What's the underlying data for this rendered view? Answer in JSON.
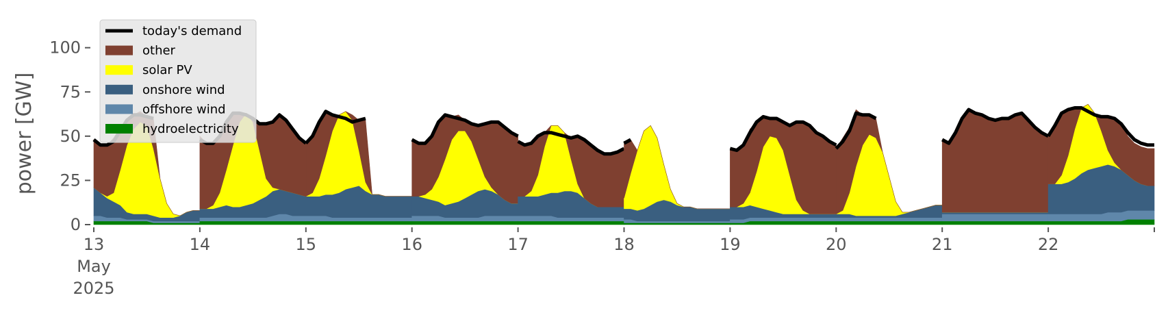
{
  "chart_data": {
    "type": "area",
    "title": "",
    "xlabel": "",
    "ylabel": "power [GW]",
    "xlim": [
      "2025-05-13 00:00",
      "2025-05-23 00:00"
    ],
    "ylim": [
      0,
      120
    ],
    "yticks": [
      0,
      25,
      50,
      75,
      100
    ],
    "xtick_labels": [
      "13\nMay\n2025",
      "14",
      "15",
      "16",
      "17",
      "18",
      "19",
      "20",
      "21",
      "22"
    ],
    "grid": false,
    "legend_position": "upper-left",
    "colors": {
      "hydroelectricity": "#008000",
      "offshore wind": "#5f87aa",
      "onshore wind": "#3a5f80",
      "solar PV": "#ffff00",
      "other": "#7f4030",
      "today's demand": "#000000"
    },
    "legend": [
      "today's demand",
      "other",
      "solar PV",
      "onshore wind",
      "offshore wind",
      "hydroelectricity"
    ],
    "stack_order": [
      "hydroelectricity",
      "offshore wind",
      "onshore wind",
      "solar PV",
      "other"
    ],
    "days": [
      {
        "date": "2025-05-13",
        "demand": [
          48,
          45,
          45,
          47,
          53,
          59,
          62,
          62,
          61,
          60,
          null,
          null,
          null,
          null,
          null,
          null,
          null
        ],
        "hydro": [
          2,
          2,
          2,
          2,
          2,
          2,
          2,
          2,
          2,
          1,
          1,
          1,
          1,
          1,
          1,
          1,
          1
        ],
        "offshore": [
          3,
          3,
          2,
          2,
          2,
          1,
          1,
          1,
          1,
          1,
          1,
          1,
          1,
          1,
          1,
          1,
          1
        ],
        "onshore": [
          16,
          13,
          11,
          9,
          7,
          4,
          3,
          3,
          3,
          3,
          2,
          2,
          2,
          3,
          5,
          6,
          6
        ],
        "solar": [
          0,
          0,
          1,
          5,
          20,
          38,
          48,
          52,
          50,
          38,
          22,
          8,
          2,
          0,
          0,
          0,
          0
        ],
        "other": [
          27,
          27,
          29,
          31,
          24,
          14,
          8,
          6,
          5,
          17,
          0,
          0,
          0,
          0,
          0,
          0,
          0
        ]
      },
      {
        "date": "2025-05-14",
        "demand": [
          48,
          46,
          46,
          50,
          58,
          63,
          63,
          62,
          60,
          57,
          57,
          58,
          62,
          59,
          54,
          49,
          46
        ],
        "hydro": [
          2,
          2,
          2,
          2,
          2,
          2,
          2,
          2,
          2,
          2,
          2,
          2,
          2,
          2,
          2,
          2,
          2
        ],
        "offshore": [
          2,
          2,
          2,
          2,
          2,
          2,
          2,
          2,
          2,
          2,
          2,
          3,
          4,
          4,
          3,
          3,
          3
        ],
        "onshore": [
          5,
          5,
          5,
          6,
          7,
          6,
          6,
          7,
          8,
          10,
          12,
          14,
          14,
          13,
          13,
          12,
          11
        ],
        "solar": [
          0,
          0,
          2,
          8,
          20,
          35,
          48,
          52,
          46,
          28,
          10,
          2,
          0,
          0,
          0,
          0,
          0
        ],
        "other": [
          41,
          37,
          35,
          32,
          27,
          18,
          5,
          0,
          2,
          15,
          31,
          37,
          42,
          40,
          36,
          32,
          30
        ]
      },
      {
        "date": "2025-05-15",
        "demand": [
          46,
          50,
          58,
          64,
          62,
          61,
          60,
          58,
          59,
          60,
          null,
          null,
          null,
          null,
          null,
          null,
          null
        ],
        "hydro": [
          2,
          2,
          2,
          2,
          2,
          2,
          2,
          2,
          2,
          2,
          2,
          2,
          2,
          2,
          2,
          2,
          2
        ],
        "offshore": [
          3,
          3,
          3,
          3,
          2,
          2,
          2,
          2,
          2,
          2,
          2,
          2,
          2,
          2,
          2,
          2,
          2
        ],
        "onshore": [
          11,
          11,
          11,
          12,
          13,
          14,
          16,
          17,
          18,
          15,
          13,
          13,
          12,
          12,
          12,
          12,
          12
        ],
        "solar": [
          0,
          2,
          10,
          22,
          36,
          44,
          44,
          38,
          20,
          5,
          0,
          0,
          0,
          0,
          0,
          0,
          0
        ],
        "other": [
          30,
          32,
          32,
          25,
          9,
          0,
          0,
          3,
          17,
          35,
          0,
          0,
          0,
          0,
          0,
          0,
          0
        ]
      },
      {
        "date": "2025-05-16",
        "demand": [
          48,
          46,
          46,
          50,
          58,
          62,
          61,
          60,
          59,
          57,
          56,
          57,
          58,
          58,
          55,
          52,
          50
        ],
        "hydro": [
          2,
          2,
          2,
          2,
          2,
          2,
          2,
          2,
          2,
          2,
          2,
          2,
          2,
          2,
          2,
          2,
          2
        ],
        "offshore": [
          3,
          3,
          3,
          3,
          3,
          2,
          2,
          2,
          2,
          2,
          2,
          3,
          3,
          3,
          3,
          3,
          3
        ],
        "onshore": [
          11,
          11,
          10,
          9,
          8,
          7,
          8,
          9,
          11,
          13,
          15,
          15,
          14,
          12,
          9,
          7,
          7
        ],
        "solar": [
          0,
          0,
          2,
          6,
          14,
          26,
          36,
          40,
          38,
          30,
          18,
          7,
          2,
          0,
          0,
          0,
          0
        ],
        "other": [
          32,
          30,
          29,
          30,
          31,
          25,
          13,
          9,
          6,
          10,
          19,
          30,
          37,
          41,
          41,
          40,
          38
        ]
      },
      {
        "date": "2025-05-17",
        "demand": [
          47,
          45,
          46,
          50,
          52,
          52,
          51,
          50,
          49,
          50,
          48,
          45,
          42,
          40,
          40,
          41,
          43
        ],
        "hydro": [
          2,
          2,
          2,
          2,
          2,
          2,
          2,
          2,
          2,
          2,
          2,
          2,
          2,
          2,
          2,
          2,
          2
        ],
        "offshore": [
          3,
          3,
          3,
          3,
          3,
          3,
          2,
          2,
          2,
          2,
          2,
          2,
          2,
          2,
          2,
          2,
          2
        ],
        "onshore": [
          11,
          11,
          11,
          11,
          12,
          13,
          14,
          15,
          15,
          14,
          11,
          8,
          6,
          6,
          6,
          6,
          6
        ],
        "solar": [
          0,
          0,
          3,
          12,
          27,
          38,
          38,
          33,
          18,
          5,
          0,
          0,
          0,
          0,
          0,
          0,
          0
        ],
        "other": [
          31,
          29,
          27,
          22,
          8,
          0,
          0,
          0,
          12,
          27,
          33,
          33,
          32,
          30,
          30,
          31,
          33
        ]
      },
      {
        "date": "2025-05-18",
        "demand": [
          46,
          48,
          null,
          null,
          null,
          null,
          null,
          null,
          null,
          null,
          null,
          null,
          null,
          null,
          null,
          null,
          null
        ],
        "hydro": [
          1,
          1,
          1,
          1,
          1,
          1,
          1,
          1,
          1,
          1,
          1,
          1,
          1,
          1,
          1,
          1,
          1
        ],
        "offshore": [
          2,
          2,
          1,
          1,
          1,
          1,
          1,
          1,
          1,
          1,
          1,
          1,
          1,
          1,
          1,
          1,
          1
        ],
        "onshore": [
          6,
          6,
          6,
          7,
          9,
          11,
          12,
          11,
          9,
          8,
          8,
          7,
          7,
          7,
          7,
          7,
          7
        ],
        "solar": [
          6,
          20,
          34,
          44,
          45,
          36,
          20,
          7,
          1,
          0,
          0,
          0,
          0,
          0,
          0,
          0,
          0
        ],
        "other": [
          32,
          19,
          0,
          0,
          0,
          0,
          0,
          0,
          0,
          0,
          0,
          0,
          0,
          0,
          0,
          0,
          0
        ]
      },
      {
        "date": "2025-05-19",
        "demand": [
          43,
          42,
          45,
          52,
          58,
          61,
          60,
          60,
          58,
          56,
          58,
          58,
          56,
          52,
          50,
          47,
          45
        ],
        "hydro": [
          1,
          1,
          1,
          2,
          2,
          2,
          2,
          2,
          2,
          2,
          2,
          2,
          2,
          2,
          2,
          2,
          2
        ],
        "offshore": [
          2,
          2,
          2,
          2,
          2,
          2,
          2,
          2,
          2,
          2,
          2,
          2,
          2,
          2,
          2,
          2,
          2
        ],
        "onshore": [
          7,
          7,
          7,
          7,
          6,
          5,
          4,
          3,
          2,
          2,
          2,
          2,
          2,
          2,
          2,
          2,
          2
        ],
        "solar": [
          0,
          0,
          2,
          7,
          20,
          35,
          42,
          42,
          36,
          22,
          8,
          2,
          0,
          0,
          0,
          0,
          0
        ],
        "other": [
          33,
          32,
          33,
          36,
          28,
          17,
          10,
          11,
          16,
          28,
          44,
          50,
          50,
          46,
          44,
          41,
          39
        ]
      },
      {
        "date": "2025-05-20",
        "demand": [
          43,
          47,
          53,
          63,
          62,
          62,
          60,
          null,
          null,
          null,
          null,
          null,
          null,
          null,
          null,
          null,
          null
        ],
        "hydro": [
          2,
          2,
          2,
          2,
          2,
          2,
          2,
          2,
          2,
          2,
          2,
          2,
          2,
          2,
          2,
          2,
          2
        ],
        "offshore": [
          2,
          2,
          2,
          2,
          2,
          2,
          2,
          2,
          2,
          2,
          2,
          2,
          2,
          2,
          2,
          2,
          2
        ],
        "onshore": [
          2,
          2,
          2,
          1,
          1,
          1,
          1,
          1,
          1,
          1,
          2,
          3,
          4,
          5,
          6,
          7,
          7
        ],
        "solar": [
          0,
          2,
          12,
          28,
          40,
          46,
          44,
          36,
          22,
          8,
          1,
          0,
          0,
          0,
          0,
          0,
          0
        ],
        "other": [
          37,
          41,
          37,
          32,
          17,
          11,
          11,
          0,
          0,
          0,
          0,
          0,
          0,
          0,
          0,
          0,
          0
        ]
      },
      {
        "date": "2025-05-21",
        "demand": [
          48,
          46,
          52,
          60,
          65,
          63,
          62,
          60,
          59,
          60,
          60,
          62,
          63,
          59,
          55,
          52,
          50
        ],
        "hydro": [
          2,
          2,
          2,
          2,
          2,
          2,
          2,
          2,
          2,
          2,
          2,
          2,
          2,
          2,
          2,
          2,
          2
        ],
        "offshore": [
          4,
          4,
          4,
          4,
          4,
          4,
          4,
          4,
          4,
          4,
          4,
          4,
          4,
          4,
          4,
          4,
          4
        ],
        "onshore": [
          1,
          1,
          1,
          1,
          1,
          1,
          1,
          1,
          1,
          1,
          1,
          1,
          1,
          1,
          1,
          1,
          1
        ],
        "solar": [
          0,
          0,
          0,
          0,
          0,
          0,
          0,
          0,
          0,
          0,
          0,
          0,
          0,
          0,
          0,
          0,
          0
        ],
        "other": [
          41,
          39,
          45,
          53,
          58,
          56,
          55,
          53,
          52,
          53,
          53,
          55,
          56,
          52,
          48,
          45,
          43
        ]
      },
      {
        "date": "2025-05-22",
        "demand": [
          50,
          56,
          63,
          65,
          66,
          66,
          64,
          62,
          61,
          61,
          60,
          57,
          52,
          48,
          46,
          45,
          45
        ],
        "hydro": [
          2,
          2,
          2,
          2,
          2,
          2,
          2,
          2,
          2,
          2,
          2,
          2,
          3,
          3,
          3,
          3,
          3
        ],
        "offshore": [
          4,
          4,
          4,
          4,
          4,
          4,
          4,
          4,
          4,
          5,
          5,
          5,
          5,
          5,
          5,
          5,
          5
        ],
        "onshore": [
          17,
          17,
          17,
          18,
          20,
          23,
          25,
          26,
          27,
          27,
          26,
          24,
          20,
          17,
          15,
          14,
          14
        ],
        "solar": [
          0,
          0,
          5,
          15,
          28,
          37,
          37,
          31,
          20,
          8,
          2,
          0,
          0,
          0,
          0,
          0,
          0
        ],
        "other": [
          27,
          33,
          35,
          26,
          12,
          0,
          0,
          0,
          8,
          19,
          25,
          26,
          22,
          21,
          21,
          21,
          21
        ]
      }
    ]
  }
}
